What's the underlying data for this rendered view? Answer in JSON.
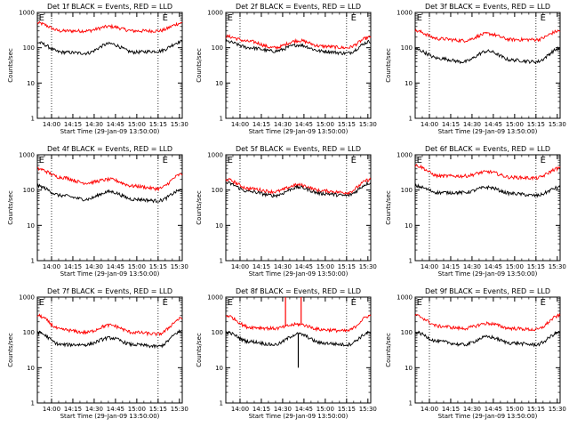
{
  "chart_data": {
    "type": "line",
    "layout": "3x3 grid",
    "shared": {
      "xlabel": "Start Time (29-Jan-09 13:50:00)",
      "ylabel": "Counts/sec",
      "x_tick_labels": [
        "14:00",
        "14:15",
        "14:30",
        "14:45",
        "15:00",
        "15:15",
        "15:30"
      ],
      "x_tick_minutes": [
        10,
        25,
        40,
        55,
        70,
        85,
        100
      ],
      "xlim_minutes": [
        0,
        102
      ],
      "y_scale": "log",
      "ylim": [
        1,
        1000
      ],
      "y_tick_labels": [
        "1",
        "10",
        "100",
        "1000"
      ],
      "vlines_minutes": [
        10,
        85
      ],
      "vline_style": "dotted",
      "markers": [
        {
          "text": "E",
          "x_minutes": 1
        },
        {
          "text": "E",
          "x_minutes": 88
        }
      ],
      "series_colors": {
        "Events": "#000000",
        "LLD": "#ff0000"
      }
    },
    "panels": [
      {
        "title": "Det 1f BLACK = Events, RED = LLD",
        "series": [
          {
            "name": "Events",
            "values": [
              140,
              75,
              70,
              130,
              75,
              80,
              150
            ]
          },
          {
            "name": "LLD",
            "values": [
              500,
              300,
              300,
              400,
              300,
              300,
              500
            ]
          }
        ]
      },
      {
        "title": "Det 2f BLACK = Events, RED = LLD",
        "series": [
          {
            "name": "Events",
            "values": [
              150,
              100,
              80,
              120,
              80,
              70,
              150
            ]
          },
          {
            "name": "LLD",
            "values": [
              210,
              150,
              100,
              160,
              110,
              100,
              200
            ]
          }
        ]
      },
      {
        "title": "Det 3f BLACK = Events, RED = LLD",
        "series": [
          {
            "name": "Events",
            "values": [
              90,
              50,
              40,
              80,
              45,
              40,
              95
            ]
          },
          {
            "name": "LLD",
            "values": [
              300,
              180,
              160,
              250,
              170,
              170,
              300
            ]
          }
        ]
      },
      {
        "title": "Det 4f BLACK = Events, RED = LLD",
        "series": [
          {
            "name": "Events",
            "values": [
              130,
              70,
              55,
              90,
              55,
              50,
              100
            ]
          },
          {
            "name": "LLD",
            "values": [
              400,
              230,
              160,
              200,
              130,
              110,
              280
            ]
          }
        ]
      },
      {
        "title": "Det 5f BLACK = Events, RED = LLD",
        "series": [
          {
            "name": "Events",
            "values": [
              160,
              90,
              70,
              120,
              80,
              70,
              160
            ]
          },
          {
            "name": "LLD",
            "values": [
              200,
              110,
              90,
              140,
              95,
              85,
              200
            ]
          }
        ]
      },
      {
        "title": "Det 6f BLACK = Events, RED = LLD",
        "series": [
          {
            "name": "Events",
            "values": [
              130,
              85,
              85,
              120,
              80,
              70,
              120
            ]
          },
          {
            "name": "LLD",
            "values": [
              500,
              250,
              250,
              330,
              230,
              220,
              420
            ]
          }
        ]
      },
      {
        "title": "Det 7f BLACK = Events, RED = LLD",
        "series": [
          {
            "name": "Events",
            "values": [
              100,
              45,
              45,
              70,
              45,
              40,
              110
            ]
          },
          {
            "name": "LLD",
            "values": [
              300,
              120,
              100,
              160,
              100,
              90,
              250
            ]
          }
        ]
      },
      {
        "title": "Det 8f BLACK = Events, RED = LLD",
        "series": [
          {
            "name": "Events",
            "values": [
              100,
              55,
              45,
              90,
              50,
              45,
              100
            ]
          },
          {
            "name": "LLD",
            "values": [
              300,
              140,
              130,
              170,
              120,
              110,
              300
            ]
          }
        ],
        "spikes": [
          {
            "series": "LLD",
            "x_minutes": 42,
            "to": 1000
          },
          {
            "series": "LLD",
            "x_minutes": 53,
            "to": 1000
          },
          {
            "series": "Events",
            "x_minutes": 51,
            "to": 10
          }
        ]
      },
      {
        "title": "Det 9f BLACK = Events, RED = LLD",
        "series": [
          {
            "name": "Events",
            "values": [
              100,
              55,
              45,
              75,
              50,
              45,
              100
            ]
          },
          {
            "name": "LLD",
            "values": [
              300,
              150,
              130,
              180,
              130,
              120,
              300
            ]
          }
        ]
      }
    ]
  }
}
